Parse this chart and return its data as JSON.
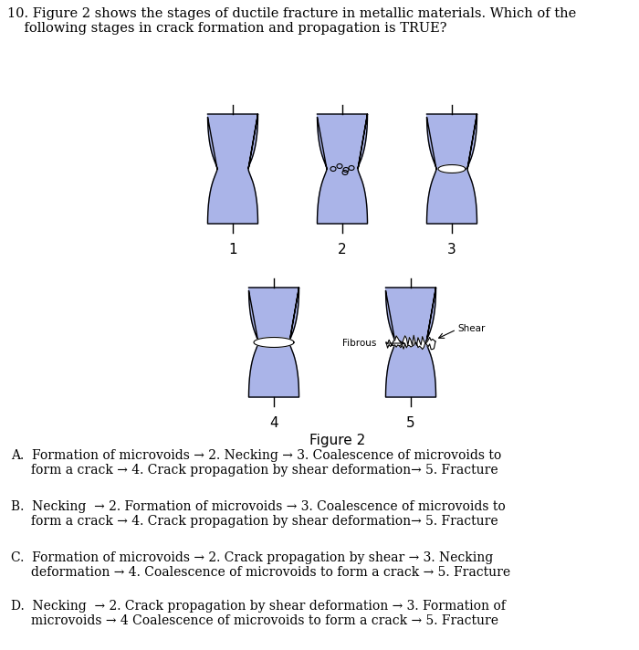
{
  "title_text": "10. Figure 2 shows the stages of ductile fracture in metallic materials. Which of the\n    following stages in crack formation and propagation is TRUE?",
  "figure_label": "Figure 2",
  "bg_color": "#ffffff",
  "shape_fill": "#aab4e8",
  "shape_edge": "#000000",
  "options": [
    "A.  Formation of microvoids → 2. Necking → 3. Coalescence of microvoids to\n     form a crack → 4. Crack propagation by shear deformation→ 5. Fracture",
    "B.  Necking  → 2. Formation of microvoids → 3. Coalescence of microvoids to\n     form a crack → 4. Crack propagation by shear deformation→ 5. Fracture",
    "C.  Formation of microvoids → 2. Crack propagation by shear → 3. Necking\n     deformation → 4. Coalescence of microvoids to form a crack → 5. Fracture",
    "D.  Necking  → 2. Crack propagation by shear deformation → 3. Formation of\n     microvoids → 4 Coalescence of microvoids to form a crack → 5. Fracture"
  ]
}
